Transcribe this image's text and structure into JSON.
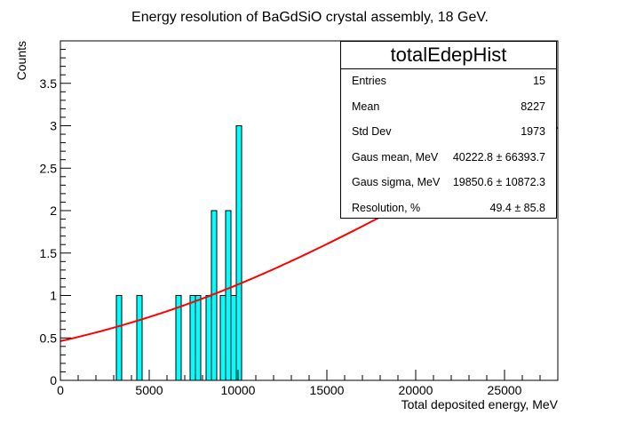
{
  "chart_data": {
    "type": "histogram",
    "title": "Energy resolution of BaGdSiO crystal assembly, 18 GeV.",
    "xlabel": "Total deposited energy, MeV",
    "ylabel": "Counts",
    "xlim": [
      0,
      28000
    ],
    "ylim": [
      0,
      4
    ],
    "x_ticks": [
      "0",
      "5000",
      "10000",
      "15000",
      "20000",
      "25000"
    ],
    "y_ticks": [
      "0",
      "0.5",
      "1",
      "1.5",
      "2",
      "2.5",
      "3",
      "3.5"
    ],
    "fill_color": "#00ffff",
    "fit_color": "#ff0000",
    "bins": [
      {
        "x0": 3150,
        "x1": 3450,
        "count": 1
      },
      {
        "x0": 4300,
        "x1": 4600,
        "count": 1
      },
      {
        "x0": 6500,
        "x1": 6800,
        "count": 1
      },
      {
        "x0": 7300,
        "x1": 7600,
        "count": 1
      },
      {
        "x0": 7600,
        "x1": 7900,
        "count": 1
      },
      {
        "x0": 8200,
        "x1": 8500,
        "count": 1
      },
      {
        "x0": 8500,
        "x1": 8800,
        "count": 2
      },
      {
        "x0": 9000,
        "x1": 9300,
        "count": 1
      },
      {
        "x0": 9300,
        "x1": 9600,
        "count": 2
      },
      {
        "x0": 9600,
        "x1": 9900,
        "count": 1
      },
      {
        "x0": 9900,
        "x1": 10200,
        "count": 3
      }
    ],
    "fit": {
      "type": "gaus",
      "mean": 40222.8,
      "sigma": 19850.6,
      "constant": 3.6
    },
    "stats": {
      "title": "totalEdepHist",
      "rows": [
        {
          "label": "Entries",
          "value": "15"
        },
        {
          "label": "Mean",
          "value": "8227"
        },
        {
          "label": "Std Dev",
          "value": "1973"
        },
        {
          "label": "Gaus mean, MeV",
          "value": "40222.8 ± 66393.7"
        },
        {
          "label": "Gaus sigma, MeV",
          "value": "19850.6 ± 10872.3"
        },
        {
          "label": "Resolution, %",
          "value": "49.4 ± 85.8"
        }
      ]
    }
  }
}
